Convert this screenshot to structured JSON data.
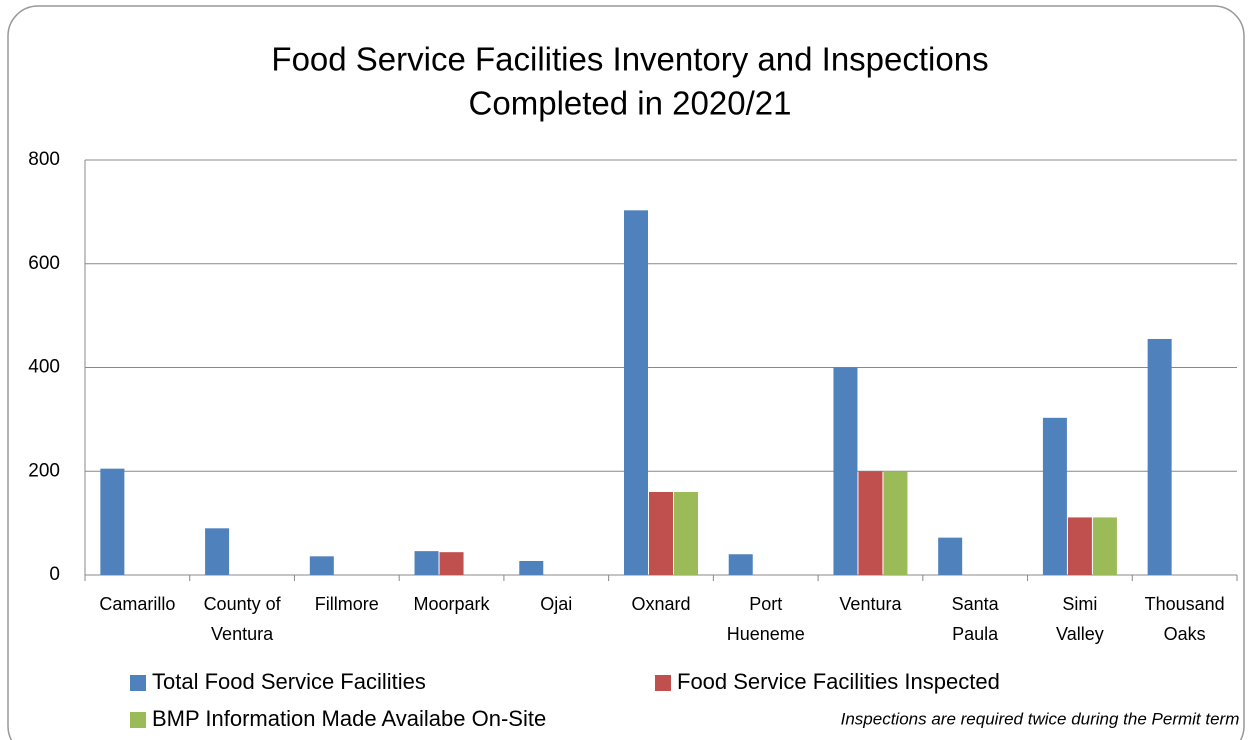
{
  "chart_data": {
    "type": "bar",
    "title": "Food Service Facilities Inventory and Inspections",
    "subtitle": "Completed in 2020/21",
    "categories": [
      "Camarillo",
      "County of Ventura",
      "Fillmore",
      "Moorpark",
      "Ojai",
      "Oxnard",
      "Port Hueneme",
      "Ventura",
      "Santa Paula",
      "Simi Valley",
      "Thousand Oaks"
    ],
    "series": [
      {
        "name": "Total Food Service Facilities",
        "color": "#4f81bd",
        "values": [
          205,
          90,
          36,
          46,
          27,
          703,
          40,
          400,
          72,
          303,
          455
        ]
      },
      {
        "name": "Food Service Facilities Inspected",
        "color": "#c0504d",
        "values": [
          null,
          null,
          null,
          44,
          null,
          160,
          null,
          200,
          null,
          111,
          null
        ]
      },
      {
        "name": "BMP Information Made Availabe On-Site",
        "color": "#9bbb59",
        "values": [
          null,
          null,
          null,
          null,
          null,
          160,
          null,
          200,
          null,
          111,
          null
        ]
      }
    ],
    "ylim": [
      0,
      800
    ],
    "yticks": [
      0,
      200,
      400,
      600,
      800
    ],
    "grid": true,
    "note": "Inspections are required twice during the Permit term"
  }
}
